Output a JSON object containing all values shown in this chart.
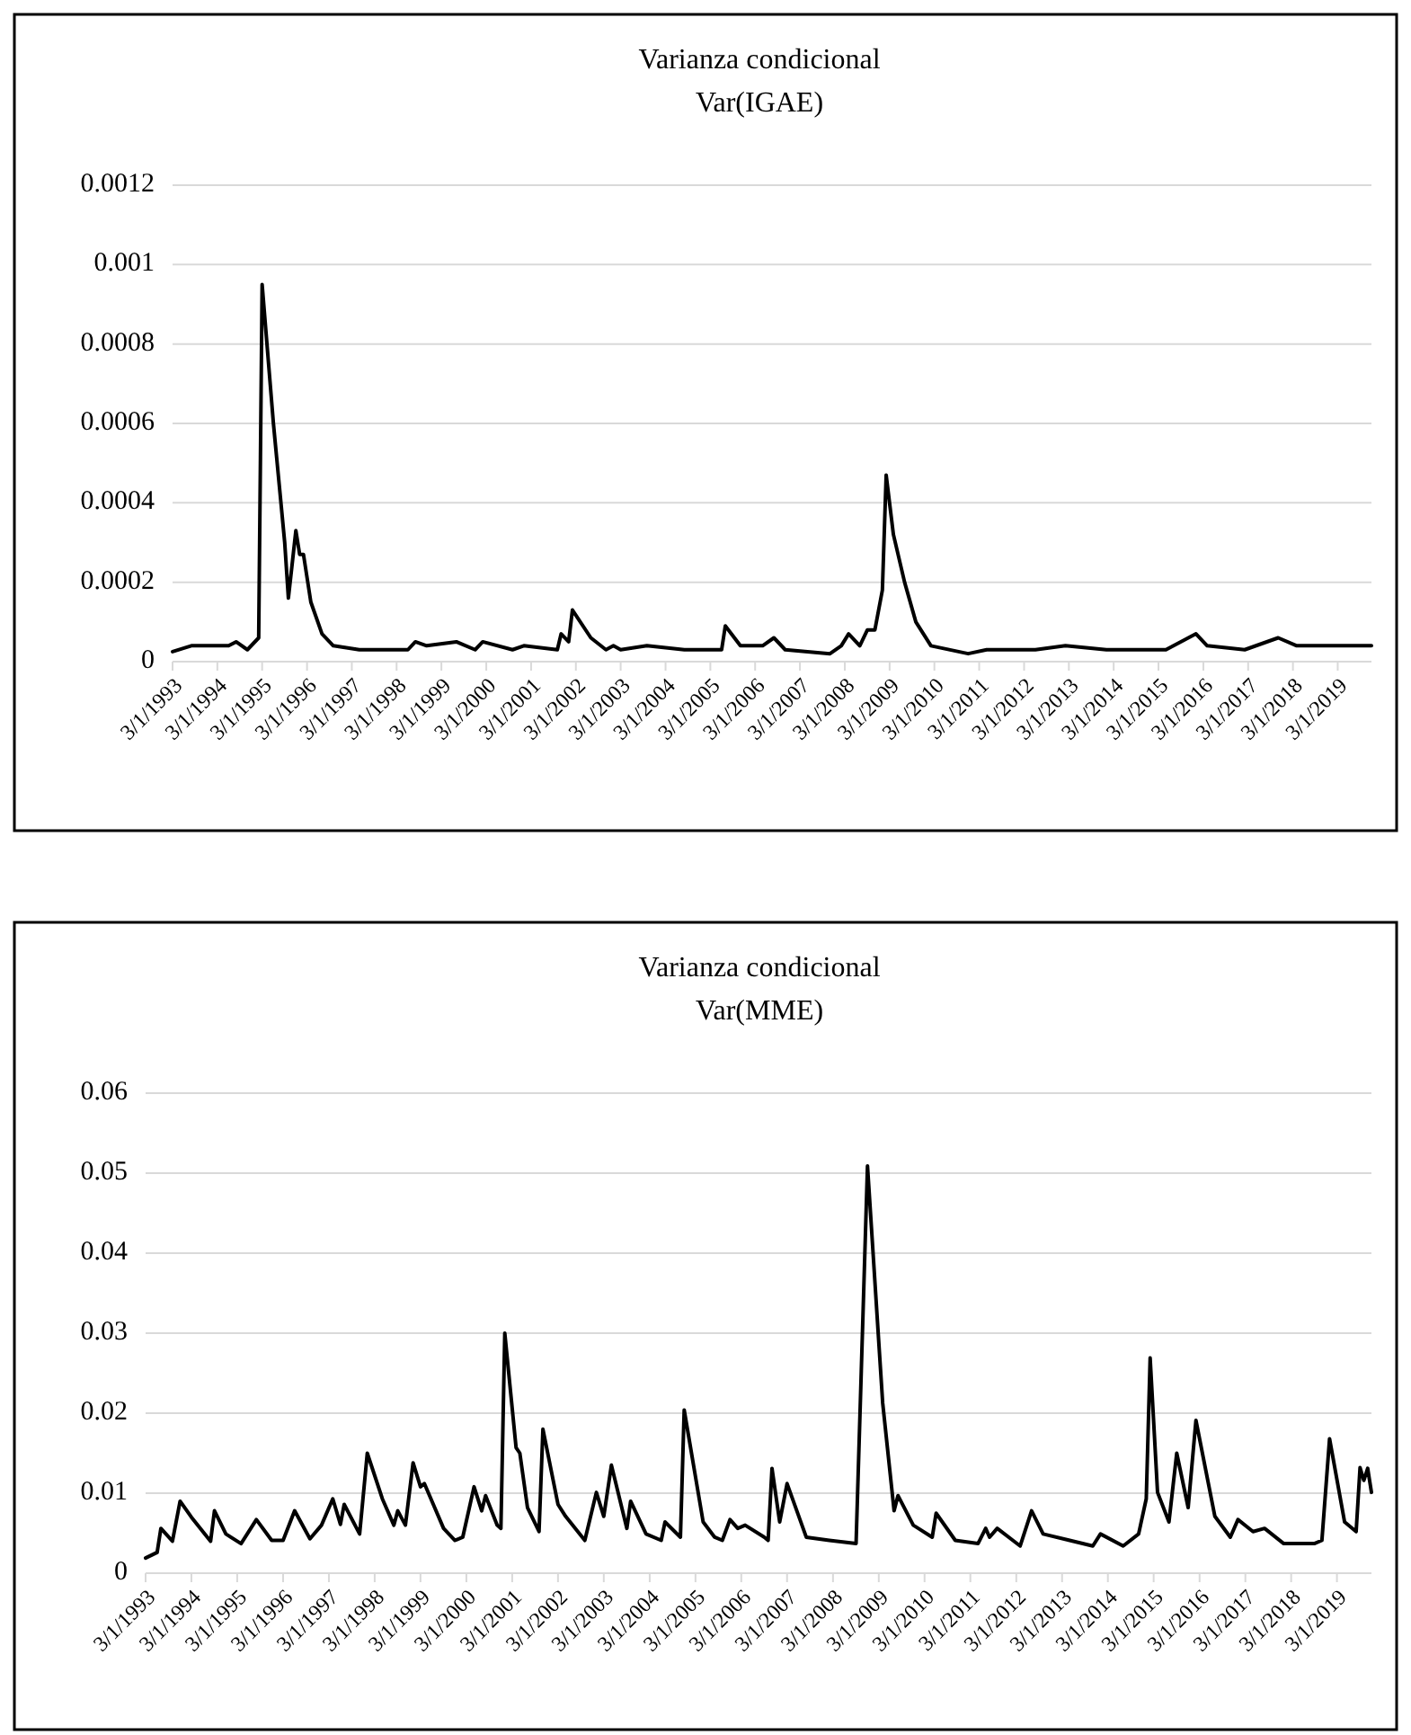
{
  "chart_data": [
    {
      "type": "line",
      "title": "Varianza condicional",
      "subtitle": "Var(IGAE)",
      "grid": "y",
      "xlim": [
        "1993-03",
        "2019-12"
      ],
      "xticks": [
        {
          "value": "1993-03",
          "label": "3/1/1993"
        },
        {
          "value": "1994-03",
          "label": "3/1/1994"
        },
        {
          "value": "1995-03",
          "label": "3/1/1995"
        },
        {
          "value": "1996-03",
          "label": "3/1/1996"
        },
        {
          "value": "1997-03",
          "label": "3/1/1997"
        },
        {
          "value": "1998-03",
          "label": "3/1/1998"
        },
        {
          "value": "1999-03",
          "label": "3/1/1999"
        },
        {
          "value": "2000-03",
          "label": "3/1/2000"
        },
        {
          "value": "2001-03",
          "label": "3/1/2001"
        },
        {
          "value": "2002-03",
          "label": "3/1/2002"
        },
        {
          "value": "2003-03",
          "label": "3/1/2003"
        },
        {
          "value": "2004-03",
          "label": "3/1/2004"
        },
        {
          "value": "2005-03",
          "label": "3/1/2005"
        },
        {
          "value": "2006-03",
          "label": "3/1/2006"
        },
        {
          "value": "2007-03",
          "label": "3/1/2007"
        },
        {
          "value": "2008-03",
          "label": "3/1/2008"
        },
        {
          "value": "2009-03",
          "label": "3/1/2009"
        },
        {
          "value": "2010-03",
          "label": "3/1/2010"
        },
        {
          "value": "2011-03",
          "label": "3/1/2011"
        },
        {
          "value": "2012-03",
          "label": "3/1/2012"
        },
        {
          "value": "2013-03",
          "label": "3/1/2013"
        },
        {
          "value": "2014-03",
          "label": "3/1/2014"
        },
        {
          "value": "2015-03",
          "label": "3/1/2015"
        },
        {
          "value": "2016-03",
          "label": "3/1/2016"
        },
        {
          "value": "2017-03",
          "label": "3/1/2017"
        },
        {
          "value": "2018-03",
          "label": "3/1/2018"
        },
        {
          "value": "2019-03",
          "label": "3/1/2019"
        }
      ],
      "ylim": [
        0,
        0.0012
      ],
      "yticks": [
        0,
        0.0002,
        0.0004,
        0.0006,
        0.0008,
        0.001,
        0.0012
      ],
      "series": [
        {
          "color": "#000000",
          "x": [
            "1993-03",
            "1993-08",
            "1994-06",
            "1994-08",
            "1994-11",
            "1995-02",
            "1995-03",
            "1995-06",
            "1995-09",
            "1995-10",
            "1995-12",
            "1996-01",
            "1996-02",
            "1996-04",
            "1996-07",
            "1996-10",
            "1997-05",
            "1998-06",
            "1998-08",
            "1998-11",
            "1999-07",
            "1999-12",
            "2000-02",
            "2000-10",
            "2001-01",
            "2001-10",
            "2001-11",
            "2002-01",
            "2002-02",
            "2002-07",
            "2002-11",
            "2003-01",
            "2003-03",
            "2003-10",
            "2004-08",
            "2005-06",
            "2005-07",
            "2005-11",
            "2006-05",
            "2006-08",
            "2006-11",
            "2007-11",
            "2008-02",
            "2008-04",
            "2008-07",
            "2008-09",
            "2008-11",
            "2009-01",
            "2009-02",
            "2009-04",
            "2009-07",
            "2009-10",
            "2010-02",
            "2010-12",
            "2011-05",
            "2012-06",
            "2013-02",
            "2014-01",
            "2015-05",
            "2016-01",
            "2016-04",
            "2017-02",
            "2017-11",
            "2018-04",
            "2019-01",
            "2019-12"
          ],
          "values": [
            2.5e-05,
            4e-05,
            4e-05,
            5e-05,
            3e-05,
            6e-05,
            0.00095,
            0.0006,
            0.0003,
            0.00016,
            0.00033,
            0.00027,
            0.00027,
            0.00015,
            7e-05,
            4e-05,
            3e-05,
            3e-05,
            5e-05,
            4e-05,
            5e-05,
            3e-05,
            5e-05,
            3e-05,
            4e-05,
            3e-05,
            7e-05,
            5e-05,
            0.00013,
            6e-05,
            3e-05,
            4e-05,
            3e-05,
            4e-05,
            3e-05,
            3e-05,
            9e-05,
            4e-05,
            4e-05,
            6e-05,
            3e-05,
            2e-05,
            4e-05,
            7e-05,
            4e-05,
            8e-05,
            8e-05,
            0.00018,
            0.00047,
            0.00032,
            0.0002,
            0.0001,
            4e-05,
            2e-05,
            3e-05,
            3e-05,
            4e-05,
            3e-05,
            3e-05,
            7e-05,
            4e-05,
            3e-05,
            6e-05,
            4e-05,
            4e-05,
            4e-05
          ]
        }
      ]
    },
    {
      "type": "line",
      "title": "Varianza condicional",
      "subtitle": "Var(MME)",
      "grid": "y",
      "xlim": [
        "1993-03",
        "2019-12"
      ],
      "xticks": [
        {
          "value": "1993-03",
          "label": "3/1/1993"
        },
        {
          "value": "1994-03",
          "label": "3/1/1994"
        },
        {
          "value": "1995-03",
          "label": "3/1/1995"
        },
        {
          "value": "1996-03",
          "label": "3/1/1996"
        },
        {
          "value": "1997-03",
          "label": "3/1/1997"
        },
        {
          "value": "1998-03",
          "label": "3/1/1998"
        },
        {
          "value": "1999-03",
          "label": "3/1/1999"
        },
        {
          "value": "2000-03",
          "label": "3/1/2000"
        },
        {
          "value": "2001-03",
          "label": "3/1/2001"
        },
        {
          "value": "2002-03",
          "label": "3/1/2002"
        },
        {
          "value": "2003-03",
          "label": "3/1/2003"
        },
        {
          "value": "2004-03",
          "label": "3/1/2004"
        },
        {
          "value": "2005-03",
          "label": "3/1/2005"
        },
        {
          "value": "2006-03",
          "label": "3/1/2006"
        },
        {
          "value": "2007-03",
          "label": "3/1/2007"
        },
        {
          "value": "2008-03",
          "label": "3/1/2008"
        },
        {
          "value": "2009-03",
          "label": "3/1/2009"
        },
        {
          "value": "2010-03",
          "label": "3/1/2010"
        },
        {
          "value": "2011-03",
          "label": "3/1/2011"
        },
        {
          "value": "2012-03",
          "label": "3/1/2012"
        },
        {
          "value": "2013-03",
          "label": "3/1/2013"
        },
        {
          "value": "2014-03",
          "label": "3/1/2014"
        },
        {
          "value": "2015-03",
          "label": "3/1/2015"
        },
        {
          "value": "2016-03",
          "label": "3/1/2016"
        },
        {
          "value": "2017-03",
          "label": "3/1/2017"
        },
        {
          "value": "2018-03",
          "label": "3/1/2018"
        },
        {
          "value": "2019-03",
          "label": "3/1/2019"
        }
      ],
      "ylim": [
        0,
        0.06
      ],
      "yticks": [
        0,
        0.01,
        0.02,
        0.03,
        0.04,
        0.05,
        0.06
      ],
      "series": [
        {
          "color": "#000000",
          "x": [
            "1993-03",
            "1993-06",
            "1993-07",
            "1993-10",
            "1993-12",
            "1994-03",
            "1994-08",
            "1994-09",
            "1994-12",
            "1995-04",
            "1995-08",
            "1995-12",
            "1996-03",
            "1996-06",
            "1996-10",
            "1997-01",
            "1997-04",
            "1997-06",
            "1997-07",
            "1997-11",
            "1998-01",
            "1998-05",
            "1998-08",
            "1998-09",
            "1998-11",
            "1999-01",
            "1999-03",
            "1999-04",
            "1999-09",
            "1999-12",
            "2000-02",
            "2000-05",
            "2000-07",
            "2000-08",
            "2000-11",
            "2000-12",
            "2001-01",
            "2001-04",
            "2001-05",
            "2001-07",
            "2001-10",
            "2001-11",
            "2002-03",
            "2002-05",
            "2002-10",
            "2003-01",
            "2003-03",
            "2003-05",
            "2003-09",
            "2003-10",
            "2004-02",
            "2004-06",
            "2004-07",
            "2004-11",
            "2004-12",
            "2005-05",
            "2005-08",
            "2005-10",
            "2005-12",
            "2006-02",
            "2006-04",
            "2006-09",
            "2006-10",
            "2006-11",
            "2007-01",
            "2007-03",
            "2007-08",
            "2008-02",
            "2008-09",
            "2008-12",
            "2009-04",
            "2009-07",
            "2009-08",
            "2009-12",
            "2010-05",
            "2010-06",
            "2010-11",
            "2011-05",
            "2011-07",
            "2011-08",
            "2011-10",
            "2012-04",
            "2012-07",
            "2012-10",
            "2013-05",
            "2013-11",
            "2014-01",
            "2014-07",
            "2014-11",
            "2015-01",
            "2015-02",
            "2015-04",
            "2015-07",
            "2015-09",
            "2015-12",
            "2016-02",
            "2016-07",
            "2016-11",
            "2017-01",
            "2017-05",
            "2017-08",
            "2018-01",
            "2018-09",
            "2018-11",
            "2019-01",
            "2019-05",
            "2019-08",
            "2019-09",
            "2019-10",
            "2019-11",
            "2019-12"
          ],
          "values": [
            0.0019,
            0.0026,
            0.0056,
            0.004,
            0.009,
            0.007,
            0.004,
            0.0078,
            0.0049,
            0.0037,
            0.0067,
            0.0041,
            0.0041,
            0.0078,
            0.0043,
            0.006,
            0.0093,
            0.0061,
            0.0086,
            0.0049,
            0.015,
            0.0093,
            0.006,
            0.0078,
            0.006,
            0.0138,
            0.0108,
            0.0112,
            0.0056,
            0.0041,
            0.0045,
            0.0108,
            0.0078,
            0.0097,
            0.006,
            0.0056,
            0.03,
            0.0157,
            0.015,
            0.0082,
            0.0052,
            0.018,
            0.0086,
            0.0071,
            0.0041,
            0.0101,
            0.0071,
            0.0135,
            0.0056,
            0.009,
            0.0049,
            0.0041,
            0.0064,
            0.0045,
            0.0204,
            0.0064,
            0.0045,
            0.0041,
            0.0067,
            0.0056,
            0.006,
            0.0045,
            0.0041,
            0.0131,
            0.0064,
            0.0112,
            0.0045,
            0.0041,
            0.0037,
            0.0509,
            0.0213,
            0.0078,
            0.0097,
            0.006,
            0.0045,
            0.0075,
            0.0041,
            0.0037,
            0.0056,
            0.0045,
            0.0056,
            0.0034,
            0.0078,
            0.0049,
            0.0041,
            0.0034,
            0.0049,
            0.0034,
            0.0049,
            0.0093,
            0.0269,
            0.0101,
            0.0064,
            0.015,
            0.0082,
            0.0191,
            0.0071,
            0.0045,
            0.0067,
            0.0052,
            0.0056,
            0.0037,
            0.0037,
            0.0041,
            0.0168,
            0.0064,
            0.0052,
            0.0132,
            0.0116,
            0.0131,
            0.0101
          ]
        }
      ]
    }
  ]
}
